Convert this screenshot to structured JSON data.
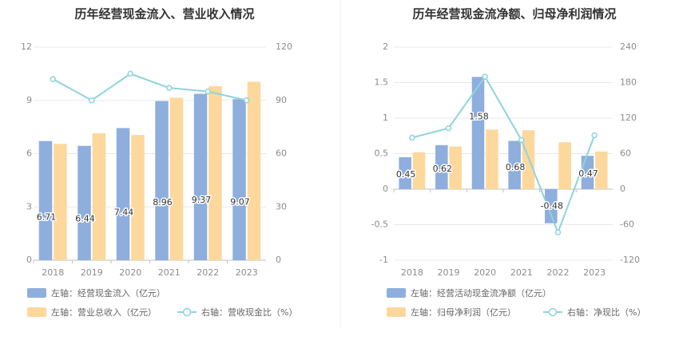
{
  "colors": {
    "bar_primary": "#8eaedd",
    "bar_secondary": "#fdd89c",
    "line": "#8ed4dc",
    "grid": "#e8e8e8",
    "axis_text": "#8c8c8c",
    "divider": "#eeeeee"
  },
  "chart_data": [
    {
      "type": "bar",
      "title": "历年经营现金流入、营业收入情况",
      "categories": [
        "2018",
        "2019",
        "2020",
        "2021",
        "2022",
        "2023"
      ],
      "left_axis": {
        "ticks": [
          "0",
          "3",
          "6",
          "9",
          "12"
        ],
        "range": [
          0,
          12
        ]
      },
      "right_axis": {
        "ticks": [
          "0",
          "30",
          "60",
          "90",
          "120"
        ],
        "range": [
          0,
          120
        ]
      },
      "series": [
        {
          "name": "左轴：经营现金流入（亿元）",
          "kind": "bar",
          "axis": "left",
          "values": [
            6.71,
            6.44,
            7.44,
            8.96,
            9.37,
            9.07
          ],
          "labels": [
            "6.71",
            "6.44",
            "7.44",
            "8.96",
            "9.37",
            "9.07"
          ]
        },
        {
          "name": "左轴：营业总收入（亿元）",
          "kind": "bar",
          "axis": "left",
          "values": [
            6.55,
            7.15,
            7.05,
            9.15,
            9.8,
            10.05
          ]
        },
        {
          "name": "右轴：营收现金比（%）",
          "kind": "line",
          "axis": "right",
          "values": [
            102,
            90,
            105,
            97,
            95,
            90
          ]
        }
      ],
      "grid": true,
      "legend_position": "bottom-left"
    },
    {
      "type": "bar",
      "title": "历年经营现金流净额、归母净利润情况",
      "categories": [
        "2018",
        "2019",
        "2020",
        "2021",
        "2022",
        "2023"
      ],
      "left_axis": {
        "ticks": [
          "-1",
          "-0.5",
          "0",
          "0.5",
          "1",
          "1.5",
          "2"
        ],
        "range": [
          -1,
          2
        ]
      },
      "right_axis": {
        "ticks": [
          "-120",
          "-60",
          "0",
          "60",
          "120",
          "180",
          "240"
        ],
        "range": [
          -120,
          240
        ]
      },
      "series": [
        {
          "name": "左轴：经营活动现金流净额（亿元）",
          "kind": "bar",
          "axis": "left",
          "values": [
            0.45,
            0.62,
            1.58,
            0.68,
            -0.48,
            0.47
          ],
          "labels": [
            "0.45",
            "0.62",
            "1.58",
            "0.68",
            "-0.48",
            "0.47"
          ]
        },
        {
          "name": "左轴：归母净利润（亿元）",
          "kind": "bar",
          "axis": "left",
          "values": [
            0.52,
            0.6,
            0.84,
            0.83,
            0.66,
            0.53
          ]
        },
        {
          "name": "右轴：净现比（%）",
          "kind": "line",
          "axis": "right",
          "values": [
            87,
            103,
            190,
            83,
            -73,
            91
          ]
        }
      ],
      "grid": true,
      "legend_position": "bottom-left"
    }
  ]
}
